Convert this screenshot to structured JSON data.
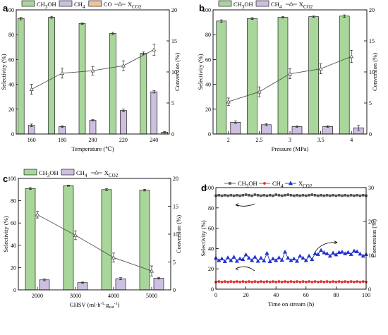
{
  "chart_data": [
    {
      "panel": "a",
      "type": "bar",
      "categories": [
        "160",
        "180",
        "200",
        "220",
        "240"
      ],
      "series": [
        {
          "name": "CH3OH",
          "axis": "left",
          "color": "#a9d69a",
          "values": [
            93,
            94,
            89,
            81,
            65
          ],
          "errors": [
            1,
            0.8,
            0.6,
            1,
            1
          ]
        },
        {
          "name": "CH4",
          "axis": "left",
          "color": "#cdbfe0",
          "values": [
            7,
            6,
            11,
            19,
            34
          ],
          "errors": [
            1,
            0.6,
            0.6,
            1,
            1
          ]
        },
        {
          "name": "CO",
          "axis": "left",
          "color": "#f3c49a",
          "values": [
            0,
            0,
            0,
            0,
            1.5
          ],
          "errors": [
            0,
            0,
            0,
            0,
            0.5
          ]
        },
        {
          "name": "XCO2",
          "axis": "right",
          "kind": "line",
          "marker": "triangle",
          "color": "#555555",
          "values": [
            7.2,
            9.8,
            10.2,
            11,
            13.6
          ],
          "errors": [
            0.8,
            0.8,
            0.7,
            0.8,
            0.9
          ]
        }
      ],
      "xlabel": "Temperature (℃)",
      "ylabel_left": "Selectivity (%)",
      "ylabel_right": "Conversion (%)",
      "ylim_left": [
        0,
        100
      ],
      "ylim_right": [
        0,
        20
      ],
      "yticks_left": [
        0,
        20,
        40,
        60,
        80,
        100
      ],
      "yticks_right": [
        0,
        5,
        10,
        15,
        20
      ]
    },
    {
      "panel": "b",
      "type": "bar",
      "categories": [
        "2",
        "2.5",
        "3",
        "3.5",
        "4"
      ],
      "series": [
        {
          "name": "CH3OH",
          "axis": "left",
          "color": "#a9d69a",
          "values": [
            91,
            93,
            94,
            94.5,
            95
          ],
          "errors": [
            1,
            0.8,
            0.6,
            0.6,
            1
          ]
        },
        {
          "name": "CH4",
          "axis": "left",
          "color": "#cdbfe0",
          "values": [
            9.5,
            7.5,
            6,
            6,
            5
          ],
          "errors": [
            1,
            0.8,
            0.5,
            0.6,
            2
          ]
        },
        {
          "name": "XCO2",
          "axis": "right",
          "kind": "line",
          "marker": "triangle",
          "color": "#555555",
          "values": [
            5.2,
            6.8,
            9.7,
            10.5,
            12.5
          ],
          "errors": [
            0.6,
            0.8,
            0.8,
            0.8,
            1
          ]
        }
      ],
      "xlabel": "Pressure (MPa)",
      "ylabel_left": "Selectivity (%)",
      "ylabel_right": "Conversion (%)",
      "ylim_left": [
        0,
        100
      ],
      "ylim_right": [
        0,
        20
      ],
      "yticks_left": [
        0,
        20,
        40,
        60,
        80,
        100
      ],
      "yticks_right": [
        0,
        5,
        10,
        15,
        20
      ]
    },
    {
      "panel": "c",
      "type": "bar",
      "categories": [
        "2000",
        "3000",
        "4000",
        "5000"
      ],
      "series": [
        {
          "name": "CH3OH",
          "axis": "left",
          "color": "#a9d69a",
          "values": [
            91,
            93.5,
            90,
            89.5
          ],
          "errors": [
            0.8,
            0.5,
            1,
            0.8
          ]
        },
        {
          "name": "CH4",
          "axis": "left",
          "color": "#cdbfe0",
          "values": [
            9,
            6.5,
            10,
            10.5
          ],
          "errors": [
            0.8,
            0.5,
            1,
            0.8
          ]
        },
        {
          "name": "XCO2",
          "axis": "right",
          "kind": "line",
          "marker": "triangle",
          "color": "#555555",
          "values": [
            13.5,
            9.8,
            5.8,
            3.4
          ],
          "errors": [
            0.6,
            0.8,
            0.8,
            0.9
          ]
        }
      ],
      "xlabel": "GHSV (ml·h⁻¹·gcat⁻¹)",
      "ylabel_left": "Selectivity (%)",
      "ylabel_right": "Conversion (%)",
      "ylim_left": [
        0,
        100
      ],
      "ylim_right": [
        0,
        20
      ],
      "yticks_left": [
        0,
        20,
        40,
        60,
        80,
        100
      ],
      "yticks_right": [
        0,
        5,
        10,
        15,
        20
      ]
    },
    {
      "panel": "d",
      "type": "line",
      "x": [
        0,
        2,
        4,
        6,
        8,
        10,
        12,
        14,
        16,
        18,
        20,
        22,
        24,
        26,
        28,
        30,
        32,
        34,
        36,
        38,
        40,
        42,
        44,
        46,
        48,
        50,
        52,
        54,
        56,
        58,
        60,
        62,
        64,
        66,
        68,
        70,
        72,
        74,
        76,
        78,
        80,
        82,
        84,
        86,
        88,
        90,
        92,
        94,
        96,
        98,
        100
      ],
      "series": [
        {
          "name": "CH3OH",
          "axis": "left",
          "marker": "square",
          "color": "#555555",
          "values": [
            92,
            92.5,
            92,
            92.5,
            92,
            92.5,
            92,
            92.5,
            92,
            92.5,
            93,
            92.5,
            92,
            93,
            92.5,
            92,
            92.5,
            92,
            92.5,
            92,
            93,
            92.5,
            92,
            92.5,
            93,
            92.5,
            92,
            92.5,
            92,
            92.5,
            92,
            92.5,
            93,
            92.5,
            92,
            92.5,
            92,
            92.5,
            92,
            92.5,
            92,
            92.5,
            92,
            92.5,
            92,
            92.5,
            92,
            92.5,
            92,
            92.5,
            92
          ]
        },
        {
          "name": "CH4",
          "axis": "left",
          "marker": "circle",
          "color": "#e03030",
          "values": [
            7,
            7.5,
            7,
            7.5,
            7,
            7.5,
            7,
            7.5,
            7,
            7.5,
            7,
            7.5,
            7,
            7.5,
            7,
            7.5,
            7,
            7.5,
            7,
            7.5,
            7,
            7.5,
            7,
            7.5,
            7,
            7.5,
            7,
            7.5,
            7,
            7.5,
            7,
            7.5,
            7,
            7.5,
            7,
            7.5,
            7,
            7.5,
            7,
            7.5,
            7,
            7.5,
            7,
            7.5,
            7,
            7.5,
            7,
            7.5,
            7,
            7.5,
            7
          ]
        },
        {
          "name": "XCO2",
          "axis": "right",
          "marker": "triangle",
          "color": "#2233cc",
          "values": [
            9.2,
            8.5,
            9,
            8.2,
            9.3,
            8.5,
            9.5,
            8.3,
            9,
            8.8,
            10.2,
            9.2,
            8.5,
            9.5,
            8.3,
            9.2,
            8.4,
            10.6,
            8.2,
            9,
            8.5,
            9.3,
            8.6,
            11,
            9.2,
            8.5,
            9,
            8.3,
            9.8,
            9.2,
            8.5,
            9.8,
            8.8,
            10.5,
            10.3,
            11.5,
            10.8,
            10.5,
            9.8,
            10.7,
            10.2,
            10.9,
            11,
            10.5,
            10.9,
            10.3,
            11.3,
            11.1,
            10.4,
            9.8,
            10.3
          ]
        }
      ],
      "xlabel": "Time on stream (h)",
      "ylabel_left": "Selectivity (%)",
      "ylabel_right": "Conversion (%)",
      "xlim": [
        0,
        100
      ],
      "ylim_left": [
        0,
        100
      ],
      "ylim_right": [
        0,
        30
      ],
      "xticks": [
        0,
        20,
        40,
        60,
        80,
        100
      ],
      "yticks_left": [
        0,
        20,
        40,
        60,
        80,
        100
      ],
      "yticks_right": [
        0,
        10,
        20,
        30
      ]
    }
  ]
}
